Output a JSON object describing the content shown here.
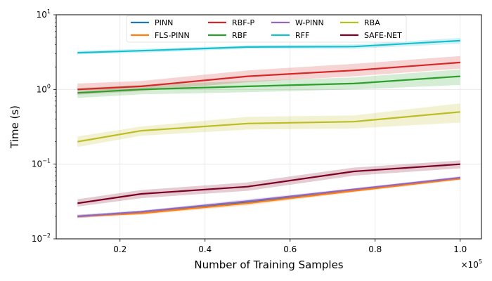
{
  "chart_data": {
    "type": "line",
    "title": "",
    "xlabel": "Number of Training Samples",
    "ylabel": "Time (s)",
    "x_scale_label": "×10",
    "x_scale_exponent": "5",
    "yscale": "log",
    "xlim": [
      0.05,
      1.05
    ],
    "ylim": [
      0.01,
      10
    ],
    "x": [
      0.1,
      0.25,
      0.5,
      0.75,
      1.0
    ],
    "x_ticks": [
      0.2,
      0.4,
      0.6,
      0.8,
      1.0
    ],
    "x_tick_labels": [
      "0.2",
      "0.4",
      "0.6",
      "0.8",
      "1.0"
    ],
    "y_ticks": [
      {
        "value": 0.01,
        "base": "10",
        "exp": "−2"
      },
      {
        "value": 0.1,
        "base": "10",
        "exp": "−1"
      },
      {
        "value": 1,
        "base": "10",
        "exp": "0"
      },
      {
        "value": 10,
        "base": "10",
        "exp": "1"
      }
    ],
    "grid": true,
    "legend_position": "top-center",
    "series": [
      {
        "name": "PINN",
        "color": "#1f77b4",
        "values": [
          0.02,
          0.023,
          0.031,
          0.045,
          0.065
        ],
        "lower": [
          0.019,
          0.022,
          0.029,
          0.043,
          0.062
        ],
        "upper": [
          0.021,
          0.024,
          0.033,
          0.047,
          0.068
        ]
      },
      {
        "name": "FLS-PINN",
        "color": "#ff7f0e",
        "values": [
          0.02,
          0.022,
          0.03,
          0.044,
          0.064
        ],
        "lower": [
          0.019,
          0.021,
          0.028,
          0.042,
          0.061
        ],
        "upper": [
          0.021,
          0.023,
          0.032,
          0.046,
          0.067
        ]
      },
      {
        "name": "RBF-P",
        "color": "#d62728",
        "values": [
          1.0,
          1.1,
          1.5,
          1.8,
          2.3
        ],
        "lower": [
          0.85,
          0.95,
          1.25,
          1.5,
          1.9
        ],
        "upper": [
          1.2,
          1.3,
          1.8,
          2.2,
          2.8
        ]
      },
      {
        "name": "RBF",
        "color": "#2ca02c",
        "values": [
          0.9,
          1.0,
          1.1,
          1.2,
          1.5
        ],
        "lower": [
          0.77,
          0.86,
          0.92,
          1.0,
          1.15
        ],
        "upper": [
          1.05,
          1.15,
          1.3,
          1.45,
          1.85
        ]
      },
      {
        "name": "W-PINN",
        "color": "#9467bd",
        "values": [
          0.02,
          0.023,
          0.032,
          0.046,
          0.066
        ],
        "lower": [
          0.019,
          0.022,
          0.03,
          0.044,
          0.063
        ],
        "upper": [
          0.021,
          0.024,
          0.034,
          0.048,
          0.069
        ]
      },
      {
        "name": "RFF",
        "color": "#17becf",
        "values": [
          3.1,
          3.3,
          3.7,
          3.75,
          4.5
        ],
        "lower": [
          2.95,
          3.1,
          3.5,
          3.5,
          4.1
        ],
        "upper": [
          3.3,
          3.5,
          3.9,
          4.0,
          4.9
        ]
      },
      {
        "name": "RBA",
        "color": "#bcbd22",
        "values": [
          0.2,
          0.28,
          0.35,
          0.37,
          0.5
        ],
        "lower": [
          0.17,
          0.24,
          0.29,
          0.3,
          0.36
        ],
        "upper": [
          0.235,
          0.32,
          0.43,
          0.45,
          0.65
        ]
      },
      {
        "name": "SAFE-NET",
        "color": "#7b0023",
        "values": [
          0.03,
          0.04,
          0.05,
          0.08,
          0.1
        ],
        "lower": [
          0.027,
          0.035,
          0.044,
          0.07,
          0.088
        ],
        "upper": [
          0.034,
          0.045,
          0.057,
          0.09,
          0.112
        ]
      }
    ]
  }
}
